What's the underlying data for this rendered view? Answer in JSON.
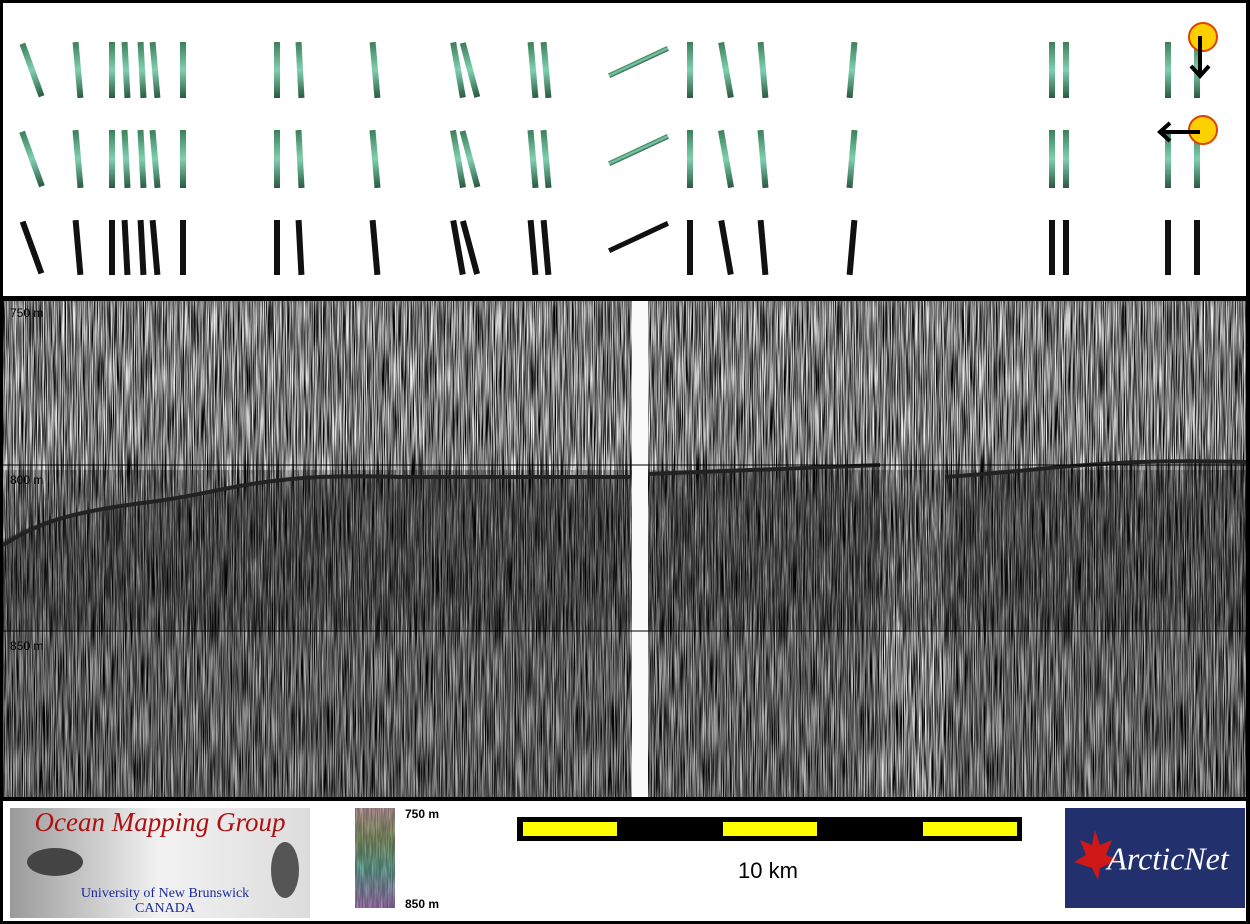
{
  "depth_labels": [
    "750 m",
    "800 m",
    "850 m"
  ],
  "logo": {
    "title": "Ocean Mapping Group",
    "university": "University of New Brunswick",
    "country": "CANADA"
  },
  "colorbar": {
    "top": "750 m",
    "bottom": "850 m"
  },
  "scalebar": {
    "label": "10 km"
  },
  "partner": {
    "name": "ArcticNet"
  }
}
